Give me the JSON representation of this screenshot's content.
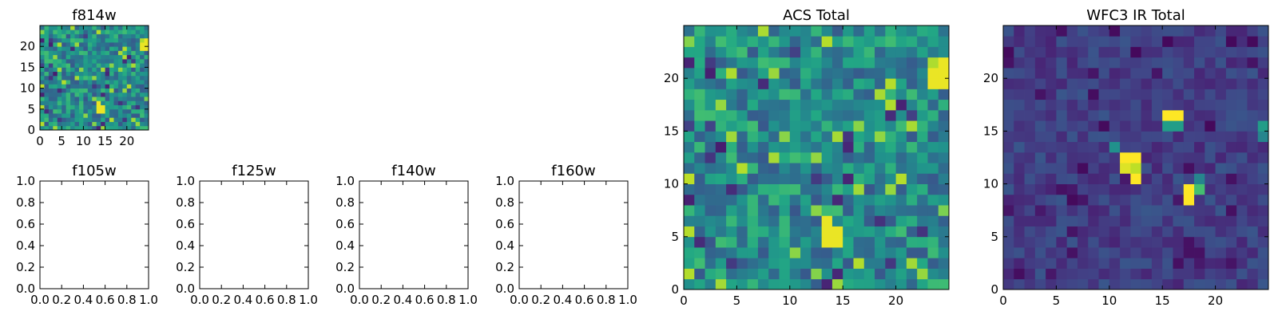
{
  "chart_data": [
    {
      "id": "f814w",
      "type": "heatmap",
      "title": "f814w",
      "xlim": [
        0,
        25
      ],
      "ylim": [
        0,
        25
      ],
      "xticks": [
        0,
        5,
        10,
        15,
        20
      ],
      "yticks": [
        0,
        5,
        10,
        15,
        20
      ],
      "xtick_labels": [
        "0",
        "5",
        "10",
        "15",
        "20"
      ],
      "ytick_labels": [
        "0",
        "5",
        "10",
        "15",
        "20"
      ],
      "grid_size": 25,
      "colormap": "viridis",
      "pattern": "acs",
      "note": "same pixel values as ACS Total panel"
    },
    {
      "id": "f105w",
      "type": "empty",
      "title": "f105w",
      "xlim": [
        0,
        1
      ],
      "ylim": [
        0,
        1
      ],
      "xticks": [
        0,
        0.2,
        0.4,
        0.6,
        0.8,
        1.0
      ],
      "yticks": [
        0,
        0.2,
        0.4,
        0.6,
        0.8,
        1.0
      ],
      "xtick_labels": [
        "0.0",
        "0.2",
        "0.4",
        "0.6",
        "0.8",
        "1.0"
      ],
      "ytick_labels": [
        "0.0",
        "0.2",
        "0.4",
        "0.6",
        "0.8",
        "1.0"
      ]
    },
    {
      "id": "f125w",
      "type": "empty",
      "title": "f125w",
      "xlim": [
        0,
        1
      ],
      "ylim": [
        0,
        1
      ],
      "xticks": [
        0,
        0.2,
        0.4,
        0.6,
        0.8,
        1.0
      ],
      "yticks": [
        0,
        0.2,
        0.4,
        0.6,
        0.8,
        1.0
      ],
      "xtick_labels": [
        "0.0",
        "0.2",
        "0.4",
        "0.6",
        "0.8",
        "1.0"
      ],
      "ytick_labels": [
        "0.0",
        "0.2",
        "0.4",
        "0.6",
        "0.8",
        "1.0"
      ]
    },
    {
      "id": "f140w",
      "type": "empty",
      "title": "f140w",
      "xlim": [
        0,
        1
      ],
      "ylim": [
        0,
        1
      ],
      "xticks": [
        0,
        0.2,
        0.4,
        0.6,
        0.8,
        1.0
      ],
      "yticks": [
        0,
        0.2,
        0.4,
        0.6,
        0.8,
        1.0
      ],
      "xtick_labels": [
        "0.0",
        "0.2",
        "0.4",
        "0.6",
        "0.8",
        "1.0"
      ],
      "ytick_labels": [
        "0.0",
        "0.2",
        "0.4",
        "0.6",
        "0.8",
        "1.0"
      ]
    },
    {
      "id": "f160w",
      "type": "empty",
      "title": "f160w",
      "xlim": [
        0,
        1
      ],
      "ylim": [
        0,
        1
      ],
      "xticks": [
        0,
        0.2,
        0.4,
        0.6,
        0.8,
        1.0
      ],
      "yticks": [
        0,
        0.2,
        0.4,
        0.6,
        0.8,
        1.0
      ],
      "xtick_labels": [
        "0.0",
        "0.2",
        "0.4",
        "0.6",
        "0.8",
        "1.0"
      ],
      "ytick_labels": [
        "0.0",
        "0.2",
        "0.4",
        "0.6",
        "0.8",
        "1.0"
      ]
    },
    {
      "id": "acs-total",
      "type": "heatmap",
      "title": "ACS Total",
      "xlim": [
        0,
        25
      ],
      "ylim": [
        0,
        25
      ],
      "xticks": [
        0,
        5,
        10,
        15,
        20
      ],
      "yticks": [
        0,
        5,
        10,
        15,
        20
      ],
      "xtick_labels": [
        "0",
        "5",
        "10",
        "15",
        "20"
      ],
      "ytick_labels": [
        "0",
        "5",
        "10",
        "15",
        "20"
      ],
      "grid_size": 25,
      "colormap": "viridis",
      "pattern": "acs",
      "features": [
        {
          "x": 13.5,
          "y": 5.0,
          "value": 0.95,
          "label": "bright blob near (13, 5)"
        },
        {
          "x": 24.0,
          "y": 19.5,
          "value": 0.95,
          "label": "bright column at right edge near y=19-21"
        }
      ]
    },
    {
      "id": "wfc3-ir-total",
      "type": "heatmap",
      "title": "WFC3 IR Total",
      "xlim": [
        0,
        25
      ],
      "ylim": [
        0,
        25
      ],
      "xticks": [
        0,
        5,
        10,
        15,
        20
      ],
      "yticks": [
        0,
        5,
        10,
        15,
        20
      ],
      "xtick_labels": [
        "0",
        "5",
        "10",
        "15",
        "20"
      ],
      "ytick_labels": [
        "0",
        "5",
        "10",
        "15",
        "20"
      ],
      "grid_size": 25,
      "colormap": "viridis",
      "pattern": "ir",
      "bright_pixels": [
        {
          "x": 11,
          "y": 12,
          "value": 1.0
        },
        {
          "x": 12,
          "y": 12,
          "value": 1.0
        },
        {
          "x": 11,
          "y": 11,
          "value": 0.95
        },
        {
          "x": 12,
          "y": 11,
          "value": 0.9
        },
        {
          "x": 12,
          "y": 10,
          "value": 1.0
        },
        {
          "x": 15,
          "y": 16,
          "value": 1.0
        },
        {
          "x": 16,
          "y": 16,
          "value": 1.0
        },
        {
          "x": 15,
          "y": 15,
          "value": 0.55
        },
        {
          "x": 16,
          "y": 15,
          "value": 0.55
        },
        {
          "x": 17,
          "y": 9,
          "value": 1.0
        },
        {
          "x": 18,
          "y": 9,
          "value": 0.7
        },
        {
          "x": 17,
          "y": 8,
          "value": 1.0
        },
        {
          "x": 24,
          "y": 15,
          "value": 0.55
        },
        {
          "x": 24,
          "y": 14,
          "value": 0.45
        },
        {
          "x": 10,
          "y": 13,
          "value": 0.5
        },
        {
          "x": 18,
          "y": 10,
          "value": 0.45
        }
      ]
    }
  ]
}
